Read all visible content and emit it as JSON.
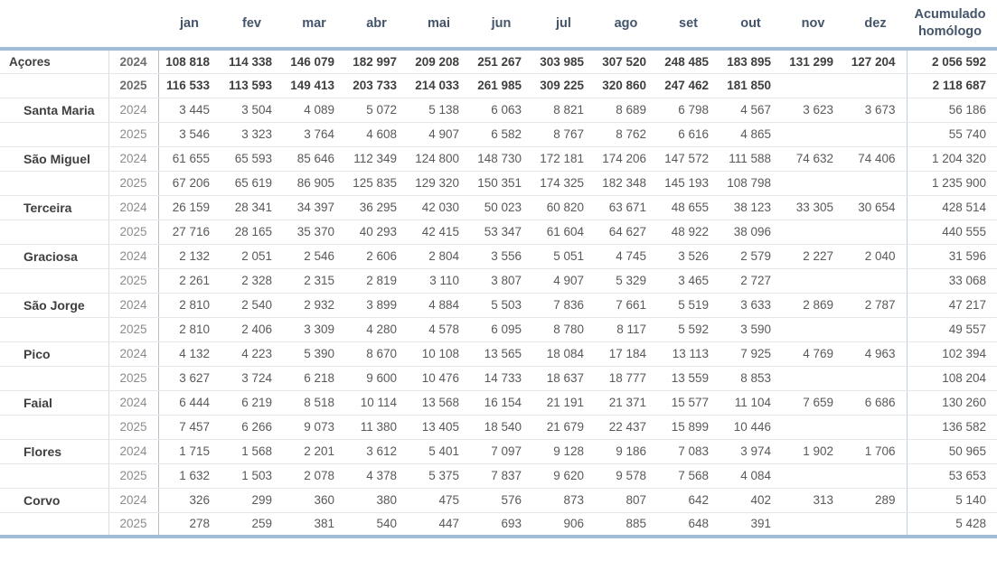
{
  "table": {
    "months": [
      "jan",
      "fev",
      "mar",
      "abr",
      "mai",
      "jun",
      "jul",
      "ago",
      "set",
      "out",
      "nov",
      "dez"
    ],
    "acumulado_label": "Acumulado homólogo",
    "regions": [
      {
        "name": "Açores",
        "total": true,
        "years": [
          {
            "year": "2024",
            "values": [
              "108 818",
              "114 338",
              "146 079",
              "182 997",
              "209 208",
              "251 267",
              "303 985",
              "307 520",
              "248 485",
              "183 895",
              "131 299",
              "127 204"
            ],
            "acumulado": "2 056 592"
          },
          {
            "year": "2025",
            "values": [
              "116 533",
              "113 593",
              "149 413",
              "203 733",
              "214 033",
              "261 985",
              "309 225",
              "320 860",
              "247 462",
              "181 850",
              "",
              ""
            ],
            "acumulado": "2 118 687"
          }
        ]
      },
      {
        "name": "Santa Maria",
        "total": false,
        "years": [
          {
            "year": "2024",
            "values": [
              "3 445",
              "3 504",
              "4 089",
              "5 072",
              "5 138",
              "6 063",
              "8 821",
              "8 689",
              "6 798",
              "4 567",
              "3 623",
              "3 673"
            ],
            "acumulado": "56 186"
          },
          {
            "year": "2025",
            "values": [
              "3 546",
              "3 323",
              "3 764",
              "4 608",
              "4 907",
              "6 582",
              "8 767",
              "8 762",
              "6 616",
              "4 865",
              "",
              ""
            ],
            "acumulado": "55 740"
          }
        ]
      },
      {
        "name": "São Miguel",
        "total": false,
        "years": [
          {
            "year": "2024",
            "values": [
              "61 655",
              "65 593",
              "85 646",
              "112 349",
              "124 800",
              "148 730",
              "172 181",
              "174 206",
              "147 572",
              "111 588",
              "74 632",
              "74 406"
            ],
            "acumulado": "1 204 320"
          },
          {
            "year": "2025",
            "values": [
              "67 206",
              "65 619",
              "86 905",
              "125 835",
              "129 320",
              "150 351",
              "174 325",
              "182 348",
              "145 193",
              "108 798",
              "",
              ""
            ],
            "acumulado": "1 235 900"
          }
        ]
      },
      {
        "name": "Terceira",
        "total": false,
        "years": [
          {
            "year": "2024",
            "values": [
              "26 159",
              "28 341",
              "34 397",
              "36 295",
              "42 030",
              "50 023",
              "60 820",
              "63 671",
              "48 655",
              "38 123",
              "33 305",
              "30 654"
            ],
            "acumulado": "428 514"
          },
          {
            "year": "2025",
            "values": [
              "27 716",
              "28 165",
              "35 370",
              "40 293",
              "42 415",
              "53 347",
              "61 604",
              "64 627",
              "48 922",
              "38 096",
              "",
              ""
            ],
            "acumulado": "440 555"
          }
        ]
      },
      {
        "name": "Graciosa",
        "total": false,
        "years": [
          {
            "year": "2024",
            "values": [
              "2 132",
              "2 051",
              "2 546",
              "2 606",
              "2 804",
              "3 556",
              "5 051",
              "4 745",
              "3 526",
              "2 579",
              "2 227",
              "2 040"
            ],
            "acumulado": "31 596"
          },
          {
            "year": "2025",
            "values": [
              "2 261",
              "2 328",
              "2 315",
              "2 819",
              "3 110",
              "3 807",
              "4 907",
              "5 329",
              "3 465",
              "2 727",
              "",
              ""
            ],
            "acumulado": "33 068"
          }
        ]
      },
      {
        "name": "São Jorge",
        "total": false,
        "years": [
          {
            "year": "2024",
            "values": [
              "2 810",
              "2 540",
              "2 932",
              "3 899",
              "4 884",
              "5 503",
              "7 836",
              "7 661",
              "5 519",
              "3 633",
              "2 869",
              "2 787"
            ],
            "acumulado": "47 217"
          },
          {
            "year": "2025",
            "values": [
              "2 810",
              "2 406",
              "3 309",
              "4 280",
              "4 578",
              "6 095",
              "8 780",
              "8 117",
              "5 592",
              "3 590",
              "",
              ""
            ],
            "acumulado": "49 557"
          }
        ]
      },
      {
        "name": "Pico",
        "total": false,
        "years": [
          {
            "year": "2024",
            "values": [
              "4 132",
              "4 223",
              "5 390",
              "8 670",
              "10 108",
              "13 565",
              "18 084",
              "17 184",
              "13 113",
              "7 925",
              "4 769",
              "4 963"
            ],
            "acumulado": "102 394"
          },
          {
            "year": "2025",
            "values": [
              "3 627",
              "3 724",
              "6 218",
              "9 600",
              "10 476",
              "14 733",
              "18 637",
              "18 777",
              "13 559",
              "8 853",
              "",
              ""
            ],
            "acumulado": "108 204"
          }
        ]
      },
      {
        "name": "Faial",
        "total": false,
        "years": [
          {
            "year": "2024",
            "values": [
              "6 444",
              "6 219",
              "8 518",
              "10 114",
              "13 568",
              "16 154",
              "21 191",
              "21 371",
              "15 577",
              "11 104",
              "7 659",
              "6 686"
            ],
            "acumulado": "130 260"
          },
          {
            "year": "2025",
            "values": [
              "7 457",
              "6 266",
              "9 073",
              "11 380",
              "13 405",
              "18 540",
              "21 679",
              "22 437",
              "15 899",
              "10 446",
              "",
              ""
            ],
            "acumulado": "136 582"
          }
        ]
      },
      {
        "name": "Flores",
        "total": false,
        "years": [
          {
            "year": "2024",
            "values": [
              "1 715",
              "1 568",
              "2 201",
              "3 612",
              "5 401",
              "7 097",
              "9 128",
              "9 186",
              "7 083",
              "3 974",
              "1 902",
              "1 706"
            ],
            "acumulado": "50 965"
          },
          {
            "year": "2025",
            "values": [
              "1 632",
              "1 503",
              "2 078",
              "4 378",
              "5 375",
              "7 837",
              "9 620",
              "9 578",
              "7 568",
              "4 084",
              "",
              ""
            ],
            "acumulado": "53 653"
          }
        ]
      },
      {
        "name": "Corvo",
        "total": false,
        "years": [
          {
            "year": "2024",
            "values": [
              "326",
              "299",
              "360",
              "380",
              "475",
              "576",
              "873",
              "807",
              "642",
              "402",
              "313",
              "289"
            ],
            "acumulado": "5 140"
          },
          {
            "year": "2025",
            "values": [
              "278",
              "259",
              "381",
              "540",
              "447",
              "693",
              "906",
              "885",
              "648",
              "391",
              "",
              ""
            ],
            "acumulado": "5 428"
          }
        ]
      }
    ]
  },
  "colors": {
    "rule": "#9fbbd6",
    "text": "#595959",
    "header_text": "#44546a"
  }
}
